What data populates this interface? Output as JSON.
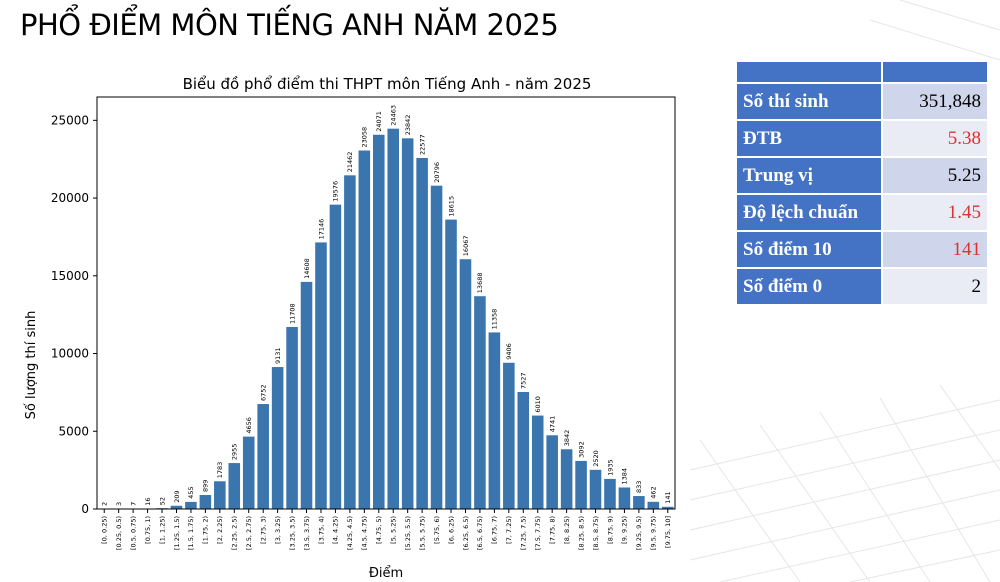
{
  "page_title": "PHỔ ĐIỂM MÔN TIẾNG ANH NĂM 2025",
  "colors": {
    "bar": "#3a76ad",
    "table_header": "#4472c4",
    "highlight_value": "#e03030"
  },
  "stats_table": {
    "rows": [
      {
        "label": "Số thí sinh",
        "value": "351,848",
        "highlight": false
      },
      {
        "label": "ĐTB",
        "value": "5.38",
        "highlight": true
      },
      {
        "label": "Trung vị",
        "value": "5.25",
        "highlight": false
      },
      {
        "label": "Độ lệch chuẩn",
        "value": "1.45",
        "highlight": true
      },
      {
        "label": "Số điểm 10",
        "value": "141",
        "highlight": true
      },
      {
        "label": "Số điểm 0",
        "value": "2",
        "highlight": false
      }
    ]
  },
  "chart_data": {
    "type": "bar",
    "title": "Biểu đồ phổ điểm thi THPT môn Tiếng Anh - năm 2025",
    "xlabel": "Điểm",
    "ylabel": "Số lượng thí sinh",
    "ylim": [
      0,
      26500
    ],
    "yticks": [
      0,
      5000,
      10000,
      15000,
      20000,
      25000
    ],
    "grid": false,
    "categories": [
      "[0, 0.25)",
      "[0.25, 0.5)",
      "[0.5, 0.75)",
      "[0.75, 1)",
      "[1, 1.25)",
      "[1.25, 1.5)",
      "[1.5, 1.75)",
      "[1.75, 2)",
      "[2, 2.25)",
      "[2.25, 2.5)",
      "[2.5, 2.75)",
      "[2.75, 3)",
      "[3, 3.25)",
      "[3.25, 3.5)",
      "[3.5, 3.75)",
      "[3.75, 4)",
      "[4, 4.25)",
      "[4.25, 4.5)",
      "[4.5, 4.75)",
      "[4.75, 5)",
      "[5, 5.25)",
      "[5.25, 5.5)",
      "[5.5, 5.75)",
      "[5.75, 6)",
      "[6, 6.25)",
      "[6.25, 6.5)",
      "[6.5, 6.75)",
      "[6.75, 7)",
      "[7, 7.25)",
      "[7.25, 7.5)",
      "[7.5, 7.75)",
      "[7.75, 8)",
      "[8, 8.25)",
      "[8.25, 8.5)",
      "[8.5, 8.75)",
      "[8.75, 9)",
      "[9, 9.25)",
      "[9.25, 9.5)",
      "[9.5, 9.75)",
      "[9.75, 10]"
    ],
    "values": [
      2,
      3,
      7,
      16,
      52,
      209,
      455,
      899,
      1783,
      2955,
      4656,
      6752,
      9131,
      11708,
      14608,
      17146,
      19576,
      21462,
      23058,
      24071,
      24463,
      23842,
      22577,
      20796,
      18615,
      16067,
      13688,
      11358,
      9406,
      7527,
      6010,
      4741,
      3842,
      3092,
      2520,
      1935,
      1384,
      833,
      462,
      141
    ]
  }
}
